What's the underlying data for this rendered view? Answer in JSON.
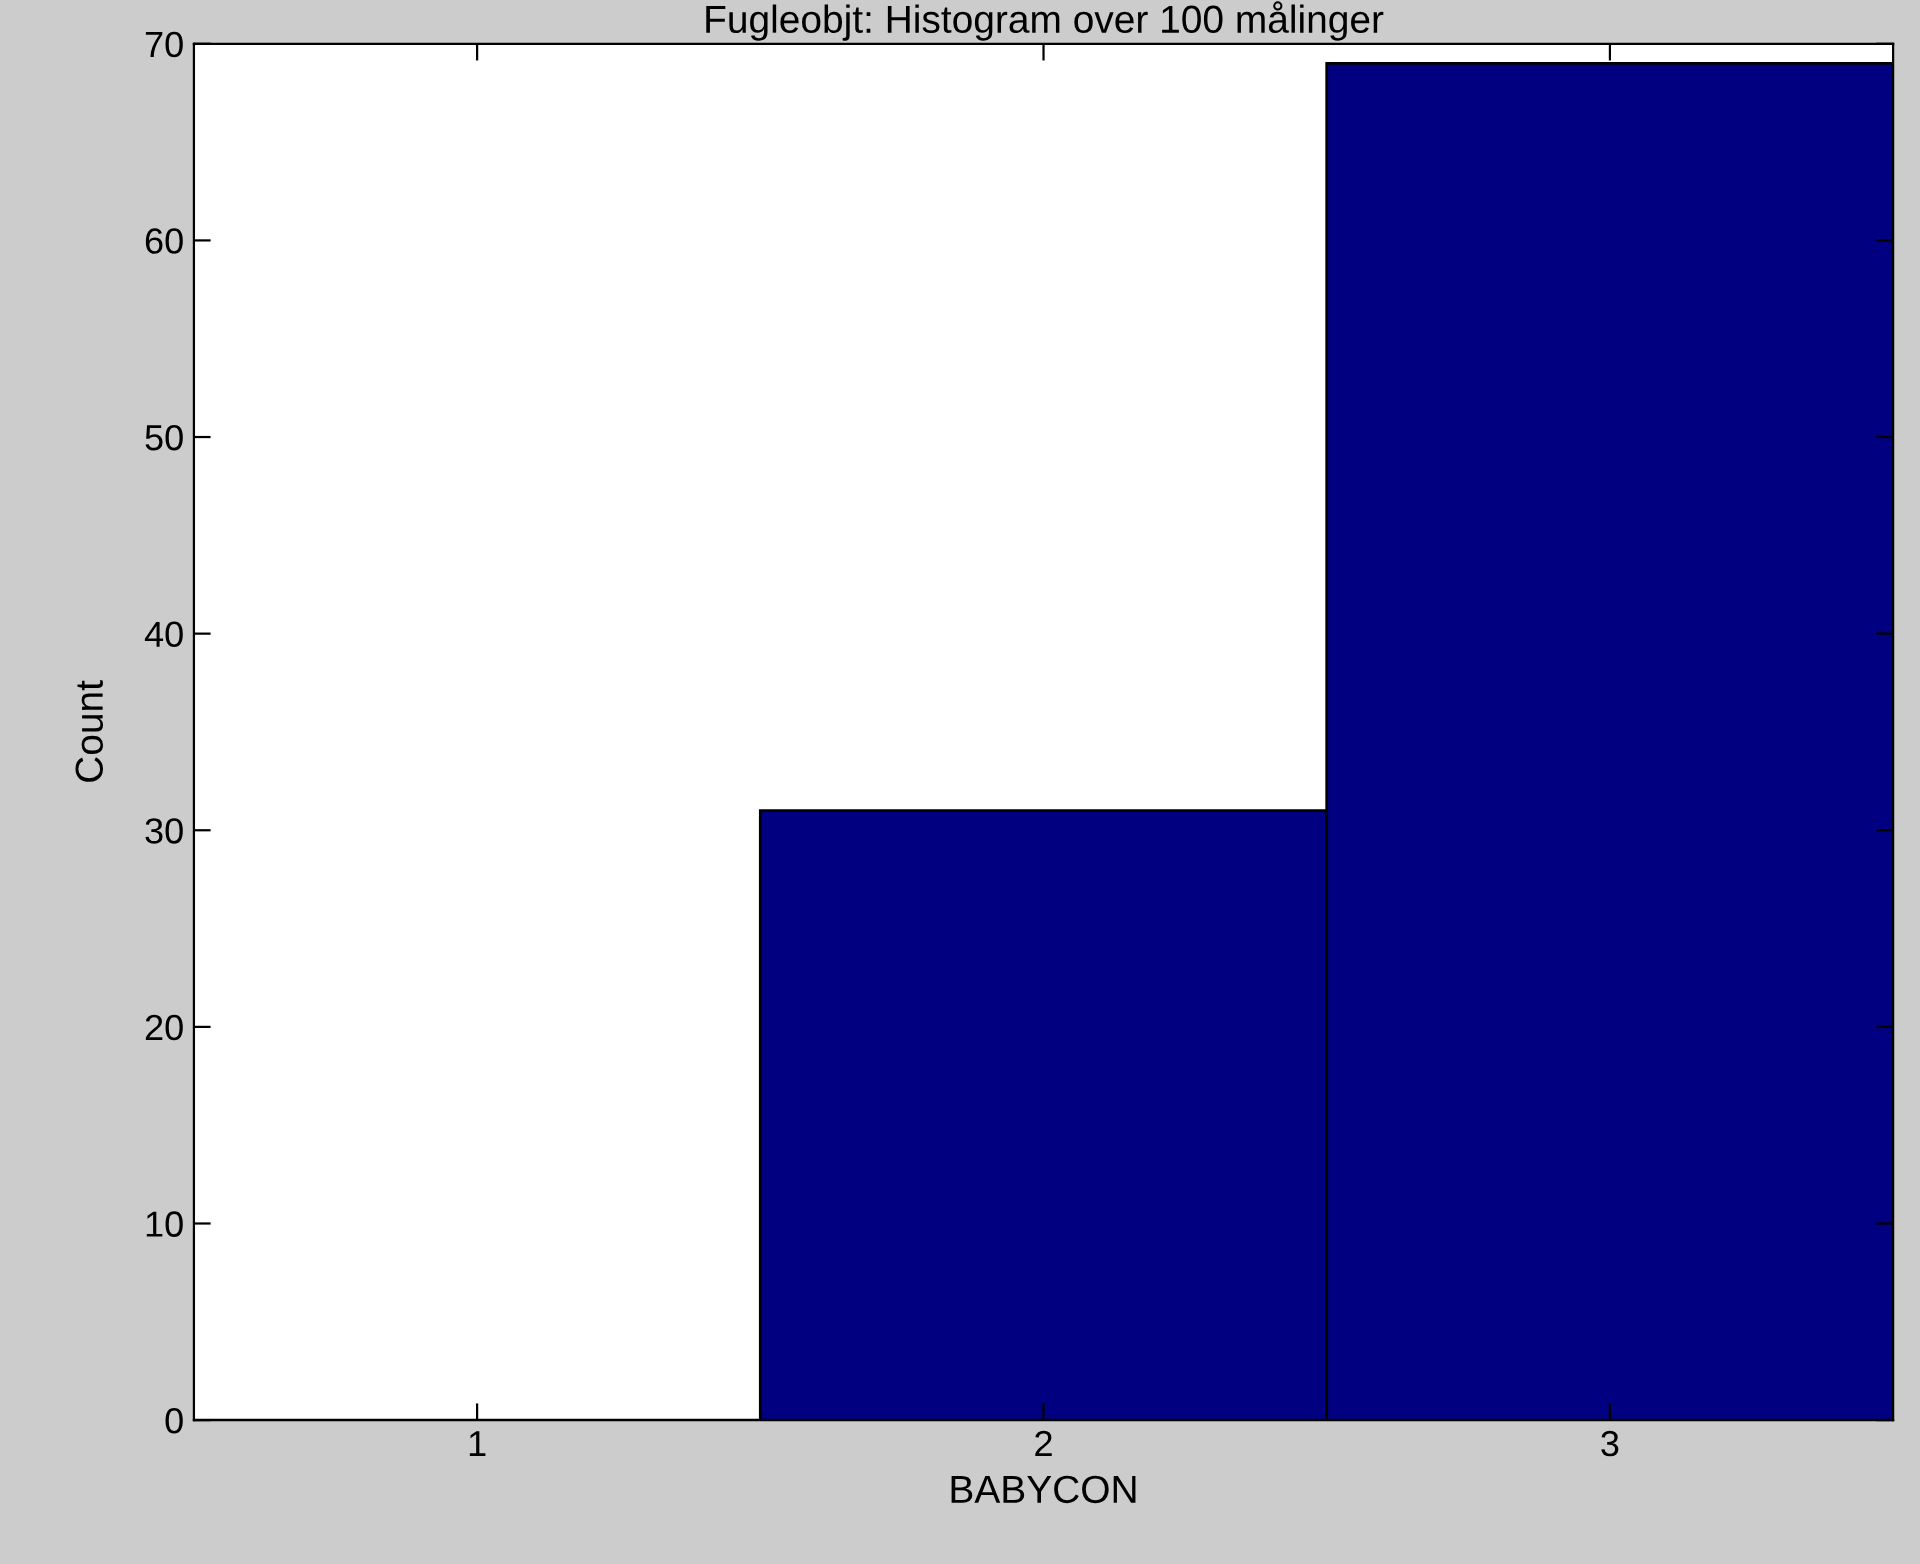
{
  "chart_data": {
    "type": "histogram",
    "title": "Fugleobjt: Histogram over 100 målinger",
    "xlabel": "BABYCON",
    "ylabel": "Count",
    "bins": [
      0.5,
      1.5,
      2.5,
      3.5
    ],
    "values": [
      0,
      31,
      69
    ],
    "color": "#000080",
    "xlim": [
      0.5,
      3.5
    ],
    "xticks": [
      1,
      2,
      3
    ],
    "ylim": [
      0,
      70
    ],
    "yticks": [
      0,
      10,
      20,
      30,
      40,
      50,
      60,
      70
    ],
    "grid": false
  }
}
